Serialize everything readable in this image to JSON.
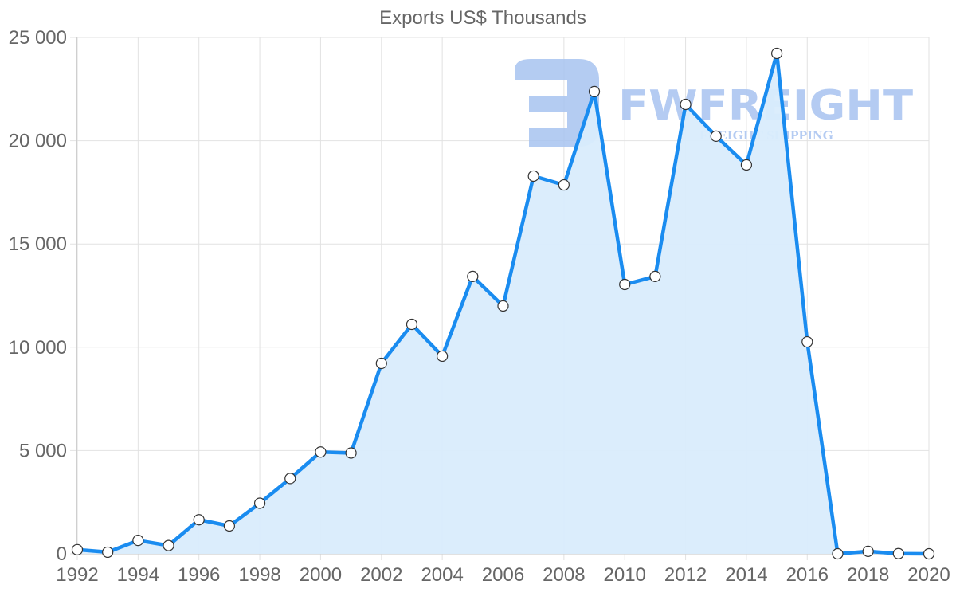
{
  "chart_data": {
    "type": "area",
    "title": "Exports US$ Thousands",
    "xlabel": "",
    "ylabel": "",
    "x": [
      1992,
      1993,
      1994,
      1995,
      1996,
      1997,
      1998,
      1999,
      2000,
      2001,
      2002,
      2003,
      2004,
      2005,
      2006,
      2007,
      2008,
      2009,
      2010,
      2011,
      2012,
      2013,
      2014,
      2015,
      2016,
      2017,
      2018,
      2019,
      2020
    ],
    "series": [
      {
        "name": "Exports US$ Thousands",
        "values": [
          200,
          80,
          650,
          400,
          1650,
          1350,
          2450,
          3650,
          4930,
          4880,
          9220,
          11110,
          9570,
          13430,
          12000,
          18290,
          17860,
          22380,
          13040,
          13430,
          21760,
          20220,
          18830,
          24230,
          10260,
          0,
          120,
          10,
          0
        ]
      }
    ],
    "ylim": [
      0,
      25000
    ],
    "y_ticks": [
      0,
      5000,
      10000,
      15000,
      20000,
      25000
    ],
    "y_tick_labels": [
      "0",
      "5 000",
      "10 000",
      "15 000",
      "20 000",
      "25 000"
    ],
    "x_tick_labels": [
      "1992",
      "1994",
      "1996",
      "1998",
      "2000",
      "2002",
      "2004",
      "2006",
      "2008",
      "2010",
      "2012",
      "2014",
      "2016",
      "2018",
      "2020"
    ],
    "grid": true,
    "legend": "none",
    "colors": {
      "line": "#1a8cf0",
      "fill": "#d9ecfc",
      "point_fill": "#ffffff",
      "point_stroke": "#333333",
      "grid": "#e2e2e2",
      "text": "#666666"
    }
  },
  "watermark": {
    "brand": "FWFREIGHT",
    "tagline": "FREIGHT SHIPPING",
    "color": "#a7c3f0"
  }
}
